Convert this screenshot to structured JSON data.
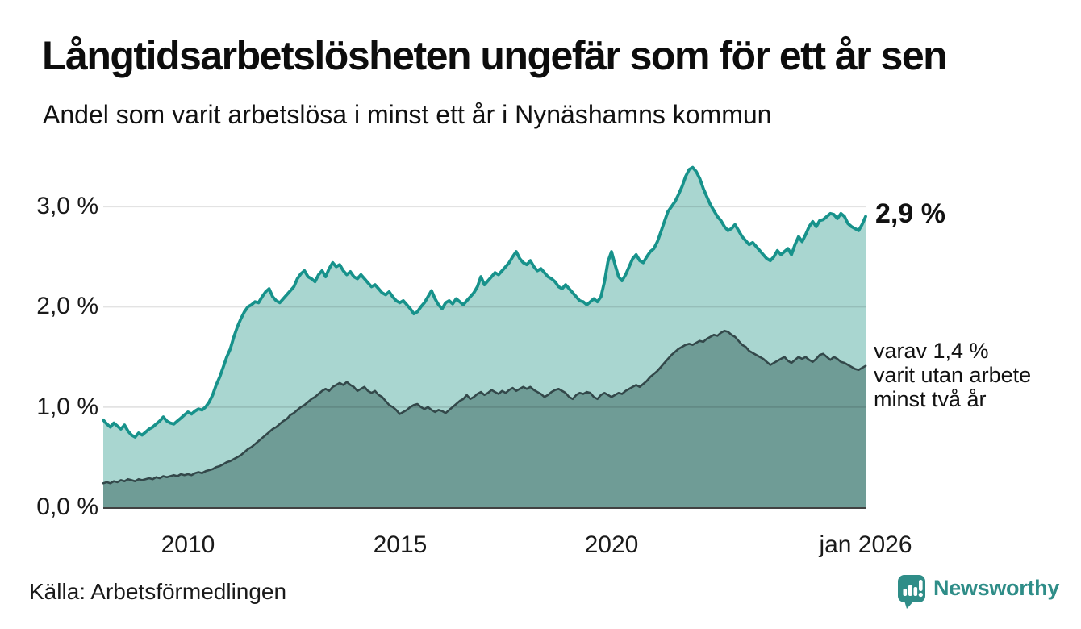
{
  "header": {
    "title": "Långtidsarbetslösheten ungefär som för ett år sen",
    "subtitle": "Andel som varit arbetslösa i minst ett år i Nynäshamns kommun"
  },
  "footer": {
    "source": "Källa: Arbetsförmedlingen",
    "brand": "Newsworthy"
  },
  "chart_data": {
    "type": "area",
    "title": "Långtidsarbetslösheten ungefär som för ett år sen",
    "subtitle": "Andel som varit arbetslösa i minst ett år i Nynäshamns kommun",
    "unit": "%",
    "x_start": "2008-01",
    "x_end": "2026-01",
    "frequency": "monthly",
    "ylim": [
      0,
      3.5
    ],
    "grid": true,
    "legend_position": "none",
    "colors": {
      "grid": "rgba(0,0,0,0.11)",
      "axis_line": "#424242",
      "text": "#1a1a1a",
      "accent": "#17928b",
      "brand": "#2f8d88"
    },
    "y_ticks": [
      {
        "label": "0,0 %",
        "value": 0
      },
      {
        "label": "1,0 %",
        "value": 1
      },
      {
        "label": "2,0 %",
        "value": 2
      },
      {
        "label": "3,0 %",
        "value": 3
      }
    ],
    "x_ticks": [
      {
        "label": "2010",
        "index": 24
      },
      {
        "label": "2015",
        "index": 84
      },
      {
        "label": "2020",
        "index": 144
      },
      {
        "label": "jan 2026",
        "index": 216
      }
    ],
    "series": [
      {
        "id": "total",
        "name": "Arbetslösa minst ett år",
        "color": "#17928b",
        "fill": "#a9d6d0",
        "line_width": 3.8,
        "latest_value": 2.9,
        "values": [
          0.87,
          0.83,
          0.8,
          0.84,
          0.81,
          0.78,
          0.82,
          0.76,
          0.72,
          0.7,
          0.74,
          0.72,
          0.75,
          0.78,
          0.8,
          0.83,
          0.86,
          0.9,
          0.86,
          0.84,
          0.83,
          0.86,
          0.89,
          0.92,
          0.95,
          0.93,
          0.96,
          0.98,
          0.97,
          1.0,
          1.05,
          1.12,
          1.22,
          1.3,
          1.4,
          1.5,
          1.58,
          1.7,
          1.8,
          1.88,
          1.95,
          2.0,
          2.02,
          2.05,
          2.04,
          2.1,
          2.15,
          2.18,
          2.1,
          2.06,
          2.04,
          2.08,
          2.12,
          2.16,
          2.2,
          2.28,
          2.33,
          2.36,
          2.3,
          2.28,
          2.25,
          2.32,
          2.36,
          2.3,
          2.38,
          2.44,
          2.4,
          2.42,
          2.36,
          2.32,
          2.35,
          2.3,
          2.28,
          2.32,
          2.28,
          2.24,
          2.2,
          2.22,
          2.18,
          2.14,
          2.12,
          2.15,
          2.1,
          2.06,
          2.04,
          2.06,
          2.02,
          1.98,
          1.93,
          1.95,
          2.0,
          2.04,
          2.1,
          2.16,
          2.08,
          2.02,
          1.98,
          2.04,
          2.06,
          2.03,
          2.08,
          2.05,
          2.02,
          2.06,
          2.1,
          2.14,
          2.2,
          2.3,
          2.22,
          2.26,
          2.3,
          2.34,
          2.32,
          2.36,
          2.4,
          2.44,
          2.5,
          2.55,
          2.48,
          2.44,
          2.42,
          2.46,
          2.4,
          2.36,
          2.38,
          2.34,
          2.3,
          2.28,
          2.25,
          2.2,
          2.18,
          2.22,
          2.18,
          2.14,
          2.1,
          2.06,
          2.05,
          2.02,
          2.05,
          2.08,
          2.05,
          2.1,
          2.25,
          2.45,
          2.55,
          2.42,
          2.3,
          2.26,
          2.32,
          2.4,
          2.48,
          2.52,
          2.46,
          2.44,
          2.5,
          2.55,
          2.58,
          2.65,
          2.75,
          2.85,
          2.95,
          3.0,
          3.05,
          3.12,
          3.2,
          3.3,
          3.37,
          3.39,
          3.35,
          3.28,
          3.18,
          3.1,
          3.02,
          2.96,
          2.9,
          2.86,
          2.8,
          2.76,
          2.78,
          2.82,
          2.76,
          2.7,
          2.66,
          2.62,
          2.64,
          2.6,
          2.56,
          2.52,
          2.48,
          2.46,
          2.5,
          2.56,
          2.52,
          2.55,
          2.58,
          2.52,
          2.62,
          2.7,
          2.65,
          2.72,
          2.8,
          2.85,
          2.8,
          2.86,
          2.87,
          2.9,
          2.93,
          2.92,
          2.88,
          2.93,
          2.9,
          2.83,
          2.8,
          2.78,
          2.76,
          2.82,
          2.9
        ]
      },
      {
        "id": "two-year",
        "name": "Utan arbete minst två år",
        "color": "#33484a",
        "fill": "#6f9c96",
        "line_width": 2.6,
        "latest_value": 1.4,
        "values": [
          0.24,
          0.25,
          0.24,
          0.26,
          0.25,
          0.27,
          0.26,
          0.28,
          0.27,
          0.26,
          0.28,
          0.27,
          0.28,
          0.29,
          0.28,
          0.3,
          0.29,
          0.31,
          0.3,
          0.31,
          0.32,
          0.31,
          0.33,
          0.32,
          0.33,
          0.32,
          0.34,
          0.35,
          0.34,
          0.36,
          0.37,
          0.38,
          0.4,
          0.41,
          0.43,
          0.45,
          0.46,
          0.48,
          0.5,
          0.52,
          0.55,
          0.58,
          0.6,
          0.63,
          0.66,
          0.69,
          0.72,
          0.75,
          0.78,
          0.8,
          0.83,
          0.86,
          0.88,
          0.92,
          0.94,
          0.97,
          1.0,
          1.02,
          1.05,
          1.08,
          1.1,
          1.13,
          1.16,
          1.18,
          1.16,
          1.2,
          1.22,
          1.24,
          1.22,
          1.25,
          1.22,
          1.2,
          1.16,
          1.18,
          1.2,
          1.16,
          1.14,
          1.16,
          1.12,
          1.1,
          1.06,
          1.02,
          1.0,
          0.97,
          0.93,
          0.95,
          0.97,
          1.0,
          1.02,
          1.03,
          1.0,
          0.98,
          1.0,
          0.97,
          0.95,
          0.97,
          0.96,
          0.94,
          0.97,
          1.0,
          1.03,
          1.06,
          1.08,
          1.12,
          1.08,
          1.1,
          1.13,
          1.15,
          1.12,
          1.14,
          1.17,
          1.15,
          1.13,
          1.16,
          1.14,
          1.17,
          1.19,
          1.16,
          1.18,
          1.2,
          1.18,
          1.2,
          1.17,
          1.15,
          1.13,
          1.1,
          1.12,
          1.15,
          1.17,
          1.18,
          1.16,
          1.14,
          1.1,
          1.08,
          1.12,
          1.14,
          1.13,
          1.15,
          1.14,
          1.1,
          1.08,
          1.12,
          1.14,
          1.12,
          1.1,
          1.12,
          1.14,
          1.13,
          1.16,
          1.18,
          1.2,
          1.22,
          1.2,
          1.23,
          1.26,
          1.3,
          1.33,
          1.36,
          1.4,
          1.44,
          1.48,
          1.52,
          1.55,
          1.58,
          1.6,
          1.62,
          1.63,
          1.62,
          1.64,
          1.66,
          1.65,
          1.68,
          1.7,
          1.72,
          1.71,
          1.74,
          1.76,
          1.75,
          1.72,
          1.7,
          1.66,
          1.62,
          1.6,
          1.56,
          1.54,
          1.52,
          1.5,
          1.48,
          1.45,
          1.42,
          1.44,
          1.46,
          1.48,
          1.5,
          1.46,
          1.44,
          1.47,
          1.5,
          1.48,
          1.5,
          1.47,
          1.45,
          1.48,
          1.52,
          1.53,
          1.5,
          1.47,
          1.5,
          1.48,
          1.45,
          1.44,
          1.42,
          1.4,
          1.38,
          1.37,
          1.39,
          1.41
        ]
      }
    ],
    "annotations": {
      "latest_total_label": "2,9 %",
      "two_year_label_lines": [
        "varav 1,4 %",
        "varit utan arbete",
        "minst två år"
      ]
    }
  }
}
